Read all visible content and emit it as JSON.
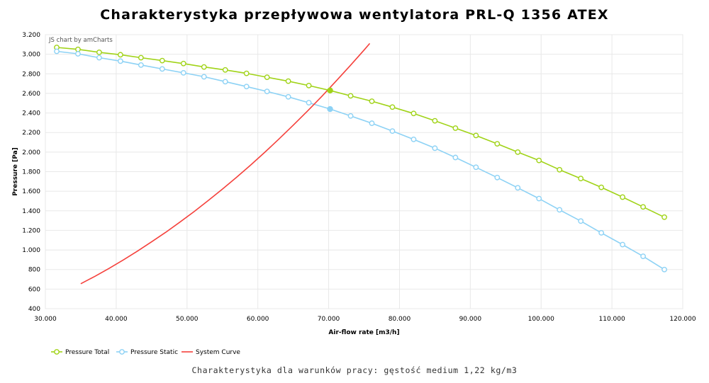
{
  "title": "Charakterystyka przepływowa wentylatora PRL-Q 1356 ATEX",
  "subtitle": "Charakterystyka dla warunków pracy: gęstość medium 1,22 kg/m3",
  "credit": "JS chart by amCharts",
  "chart_data": {
    "type": "line",
    "xlabel": "Air-flow rate [m3/h]",
    "ylabel": "Pressure [Pa]",
    "xlim": [
      30000,
      120000
    ],
    "ylim": [
      400,
      3200
    ],
    "x_ticks": [
      "30.000",
      "40.000",
      "50.000",
      "60.000",
      "70.000",
      "80.000",
      "90.000",
      "100.000",
      "110.000",
      "120.000"
    ],
    "y_ticks": [
      "400",
      "600",
      "800",
      "1.000",
      "1.200",
      "1.400",
      "1.600",
      "1.800",
      "2.000",
      "2.200",
      "2.400",
      "2.600",
      "2.800",
      "3.000",
      "3.200"
    ],
    "grid": true,
    "legend_position": "bottom-left",
    "series": [
      {
        "name": "Pressure Total",
        "color": "#a0d317",
        "marker": "hollow-circle",
        "x": [
          31600,
          34600,
          37600,
          40600,
          43500,
          46500,
          49500,
          52400,
          55400,
          58400,
          61300,
          64300,
          67200,
          70200,
          73100,
          76100,
          79000,
          82000,
          85000,
          87900,
          90800,
          93800,
          96700,
          99700,
          102600,
          105600,
          108500,
          111500,
          114400,
          117400
        ],
        "y": [
          3070,
          3050,
          3020,
          2995,
          2965,
          2935,
          2905,
          2870,
          2840,
          2805,
          2765,
          2725,
          2680,
          2630,
          2575,
          2520,
          2460,
          2395,
          2320,
          2245,
          2170,
          2085,
          2000,
          1915,
          1820,
          1730,
          1640,
          1540,
          1440,
          1335
        ]
      },
      {
        "name": "Pressure Static",
        "color": "#8dd2f5",
        "marker": "hollow-circle",
        "x": [
          31600,
          34600,
          37600,
          40600,
          43500,
          46500,
          49500,
          52400,
          55400,
          58400,
          61300,
          64300,
          67200,
          70200,
          73100,
          76100,
          79000,
          82000,
          85000,
          87900,
          90800,
          93800,
          96700,
          99700,
          102600,
          105600,
          108500,
          111500,
          114400,
          117400
        ],
        "y": [
          3030,
          3005,
          2965,
          2930,
          2890,
          2850,
          2810,
          2770,
          2720,
          2670,
          2620,
          2565,
          2505,
          2440,
          2370,
          2295,
          2215,
          2130,
          2040,
          1945,
          1845,
          1740,
          1635,
          1525,
          1410,
          1295,
          1175,
          1055,
          935,
          800
        ]
      },
      {
        "name": "System Curve",
        "color": "#f5413c",
        "marker": "none",
        "x": [
          35000,
          37000,
          39000,
          41000,
          43000,
          45000,
          47000,
          49000,
          51000,
          53000,
          55000,
          57000,
          59000,
          61000,
          63000,
          65000,
          67000,
          69000,
          71000,
          73000,
          75000,
          75800
        ],
        "y": [
          655,
          731,
          812,
          898,
          988,
          1083,
          1181,
          1285,
          1392,
          1505,
          1622,
          1743,
          1869,
          2000,
          2135,
          2275,
          2419,
          2568,
          2722,
          2880,
          3043,
          3110
        ]
      }
    ],
    "operating_points": [
      {
        "series": "Pressure Total",
        "x": 70200,
        "y": 2630
      },
      {
        "series": "Pressure Static",
        "x": 70200,
        "y": 2440
      }
    ]
  }
}
